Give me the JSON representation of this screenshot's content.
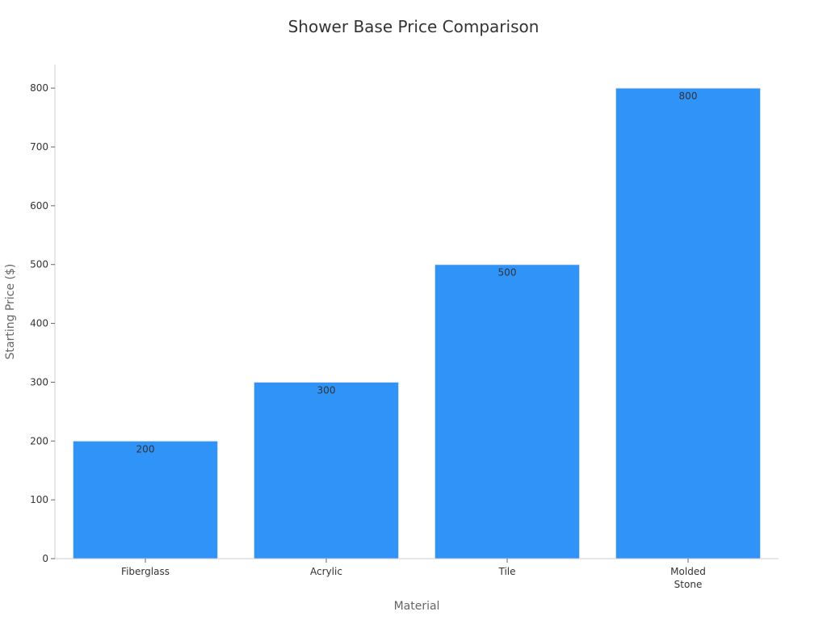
{
  "chart_data": {
    "type": "bar",
    "title": "Shower Base Price Comparison",
    "xlabel": "Material",
    "ylabel": "Starting Price ($)",
    "categories": [
      [
        "Fiberglass"
      ],
      [
        "Acrylic"
      ],
      [
        "Tile"
      ],
      [
        "Molded",
        "Stone"
      ]
    ],
    "values": [
      200,
      300,
      500,
      800
    ],
    "ylim": [
      0,
      840
    ],
    "yticks": [
      0,
      100,
      200,
      300,
      400,
      500,
      600,
      700,
      800
    ],
    "data_labels": [
      "200",
      "300",
      "500",
      "800"
    ],
    "grid": false,
    "legend": "none",
    "colors": {
      "bar": "#2f93f8"
    }
  }
}
